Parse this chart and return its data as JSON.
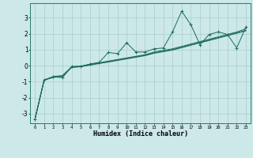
{
  "title": "",
  "xlabel": "Humidex (Indice chaleur)",
  "ylabel": "",
  "bg_color": "#cce8e8",
  "grid_color": "#aacccc",
  "line_color": "#1a6b5a",
  "border_color": "#2a7a6a",
  "xlim": [
    -0.5,
    23.5
  ],
  "ylim": [
    -3.6,
    3.9
  ],
  "yticks": [
    -3,
    -2,
    -1,
    0,
    1,
    2,
    3
  ],
  "xticks": [
    0,
    1,
    2,
    3,
    4,
    5,
    6,
    7,
    8,
    9,
    10,
    11,
    12,
    13,
    14,
    15,
    16,
    17,
    18,
    19,
    20,
    21,
    22,
    23
  ],
  "series1": [
    [
      0,
      -3.35
    ],
    [
      1,
      -0.9
    ],
    [
      2,
      -0.7
    ],
    [
      3,
      -0.75
    ],
    [
      4,
      -0.05
    ],
    [
      5,
      -0.05
    ],
    [
      6,
      0.1
    ],
    [
      7,
      0.2
    ],
    [
      8,
      0.82
    ],
    [
      9,
      0.75
    ],
    [
      10,
      1.42
    ],
    [
      11,
      0.85
    ],
    [
      12,
      0.85
    ],
    [
      13,
      1.05
    ],
    [
      14,
      1.1
    ],
    [
      15,
      2.1
    ],
    [
      16,
      3.4
    ],
    [
      17,
      2.55
    ],
    [
      18,
      1.3
    ],
    [
      19,
      1.95
    ],
    [
      20,
      2.1
    ],
    [
      21,
      1.95
    ],
    [
      22,
      1.1
    ],
    [
      23,
      2.4
    ]
  ],
  "series2": [
    [
      0,
      -3.35
    ],
    [
      1,
      -0.9
    ],
    [
      2,
      -0.68
    ],
    [
      3,
      -0.62
    ],
    [
      4,
      -0.08
    ],
    [
      5,
      -0.03
    ],
    [
      6,
      0.08
    ],
    [
      7,
      0.18
    ],
    [
      8,
      0.28
    ],
    [
      9,
      0.38
    ],
    [
      10,
      0.48
    ],
    [
      11,
      0.58
    ],
    [
      12,
      0.68
    ],
    [
      13,
      0.85
    ],
    [
      14,
      0.95
    ],
    [
      15,
      1.05
    ],
    [
      16,
      1.2
    ],
    [
      17,
      1.35
    ],
    [
      18,
      1.5
    ],
    [
      19,
      1.65
    ],
    [
      20,
      1.8
    ],
    [
      21,
      1.95
    ],
    [
      22,
      2.1
    ],
    [
      23,
      2.3
    ]
  ],
  "series3": [
    [
      0,
      -3.35
    ],
    [
      1,
      -0.9
    ],
    [
      2,
      -0.72
    ],
    [
      3,
      -0.65
    ],
    [
      4,
      -0.1
    ],
    [
      5,
      -0.05
    ],
    [
      6,
      0.05
    ],
    [
      7,
      0.15
    ],
    [
      8,
      0.25
    ],
    [
      9,
      0.35
    ],
    [
      10,
      0.45
    ],
    [
      11,
      0.55
    ],
    [
      12,
      0.65
    ],
    [
      13,
      0.8
    ],
    [
      14,
      0.9
    ],
    [
      15,
      1.0
    ],
    [
      16,
      1.15
    ],
    [
      17,
      1.3
    ],
    [
      18,
      1.45
    ],
    [
      19,
      1.6
    ],
    [
      20,
      1.75
    ],
    [
      21,
      1.9
    ],
    [
      22,
      2.05
    ],
    [
      23,
      2.2
    ]
  ],
  "series4": [
    [
      0,
      -3.35
    ],
    [
      1,
      -0.9
    ],
    [
      2,
      -0.74
    ],
    [
      3,
      -0.68
    ],
    [
      4,
      -0.12
    ],
    [
      5,
      -0.07
    ],
    [
      6,
      0.03
    ],
    [
      7,
      0.13
    ],
    [
      8,
      0.22
    ],
    [
      9,
      0.32
    ],
    [
      10,
      0.42
    ],
    [
      11,
      0.52
    ],
    [
      12,
      0.62
    ],
    [
      13,
      0.77
    ],
    [
      14,
      0.87
    ],
    [
      15,
      0.97
    ],
    [
      16,
      1.12
    ],
    [
      17,
      1.27
    ],
    [
      18,
      1.42
    ],
    [
      19,
      1.57
    ],
    [
      20,
      1.72
    ],
    [
      21,
      1.87
    ],
    [
      22,
      2.02
    ],
    [
      23,
      2.17
    ]
  ]
}
